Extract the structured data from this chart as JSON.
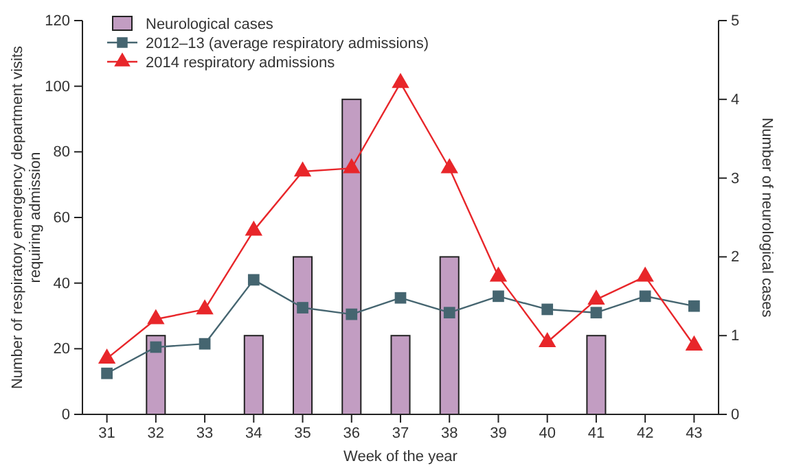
{
  "chart_data": {
    "type": "line",
    "xlabel": "Week of the year",
    "ylabel": "Number of respiratory emergency department visits requiring admission",
    "y2label": "Number of neurological cases",
    "categories": [
      "31",
      "32",
      "33",
      "34",
      "35",
      "36",
      "37",
      "38",
      "39",
      "40",
      "41",
      "42",
      "43"
    ],
    "series": [
      {
        "name": "Neurological cases",
        "type": "bar",
        "axis": "y2",
        "color": "#c29dc2",
        "values": [
          0,
          1,
          0,
          1,
          2,
          4,
          1,
          2,
          0,
          0,
          1,
          0,
          0
        ]
      },
      {
        "name": "2012–13 (average respiratory admissions)",
        "marker": "square",
        "color": "#456570",
        "values": [
          12.5,
          20.5,
          21.5,
          41,
          32.5,
          30.5,
          35.5,
          31,
          36,
          32,
          31,
          36,
          33
        ]
      },
      {
        "name": "2014 respiratory admissions",
        "marker": "triangle",
        "color": "#e8262a",
        "values": [
          17,
          29,
          32,
          56,
          74,
          75,
          101,
          75,
          42,
          22,
          35,
          42,
          21
        ]
      }
    ],
    "ylim": [
      0,
      120
    ],
    "yticks": [
      0,
      20,
      40,
      60,
      80,
      100,
      120
    ],
    "y2lim": [
      0,
      5
    ],
    "y2ticks": [
      0,
      1,
      2,
      3,
      4,
      5
    ],
    "legend": "top left",
    "grid": false
  }
}
